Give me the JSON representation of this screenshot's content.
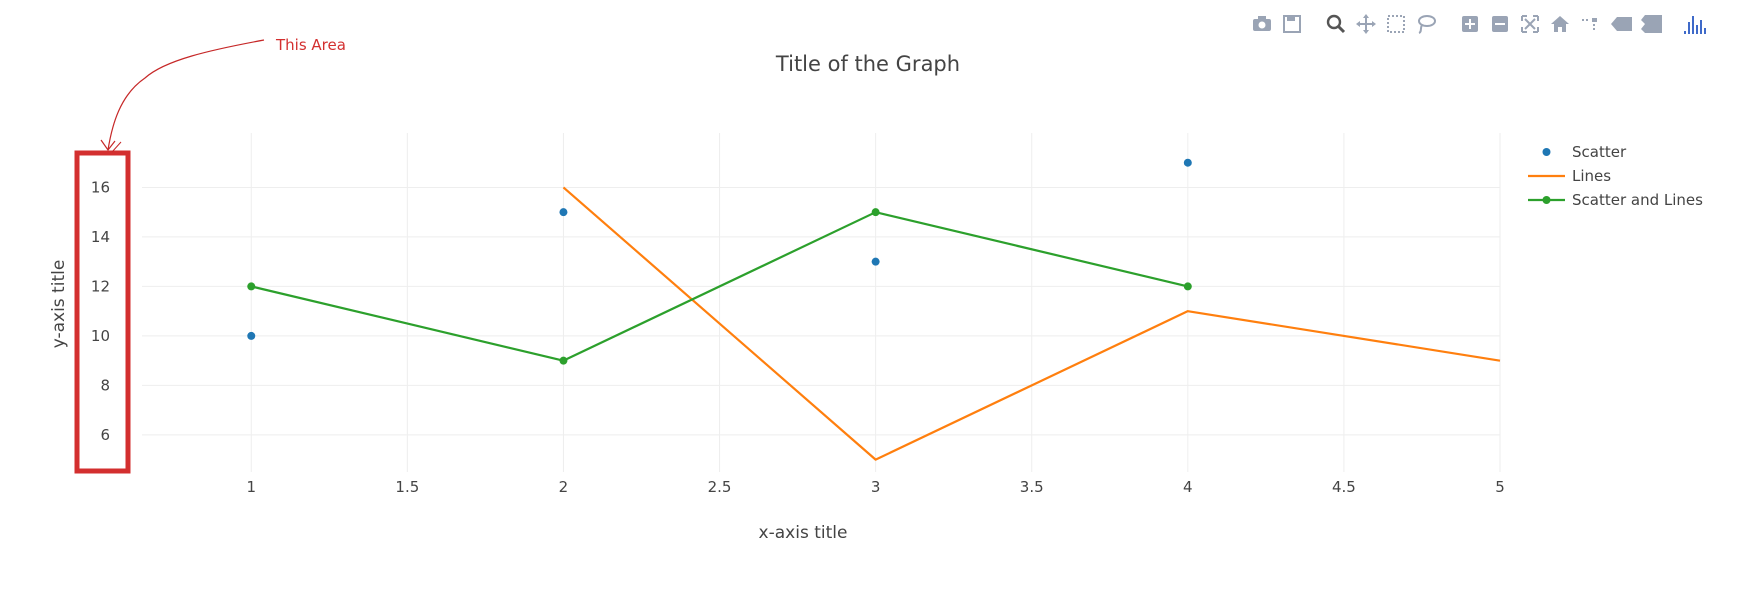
{
  "chart_data": {
    "type": "line",
    "title": "Title of the Graph",
    "xlabel": "x-axis title",
    "ylabel": "y-axis title",
    "xlim": [
      0.65,
      5
    ],
    "ylim": [
      4.5,
      18.2
    ],
    "xticks": [
      1,
      1.5,
      2,
      2.5,
      3,
      3.5,
      4,
      4.5,
      5
    ],
    "xtick_labels": [
      "1",
      "1.5",
      "2",
      "2.5",
      "3",
      "3.5",
      "4",
      "4.5",
      "5"
    ],
    "yticks": [
      6,
      8,
      10,
      12,
      14,
      16
    ],
    "ytick_labels": [
      "6",
      "8",
      "10",
      "12",
      "14",
      "16"
    ],
    "grid": true,
    "legend_position": "top-right",
    "series": [
      {
        "name": "Scatter",
        "mode": "markers",
        "color": "#1f77b4",
        "x": [
          1,
          2,
          3,
          4
        ],
        "y": [
          10,
          15,
          13,
          17
        ]
      },
      {
        "name": "Lines",
        "mode": "lines",
        "color": "#ff7f0e",
        "x": [
          2,
          3,
          4,
          5
        ],
        "y": [
          16,
          5,
          11,
          9
        ]
      },
      {
        "name": "Scatter and Lines",
        "mode": "lines+markers",
        "color": "#2ca02c",
        "x": [
          1,
          2,
          3,
          4
        ],
        "y": [
          12,
          9,
          15,
          12
        ]
      }
    ]
  },
  "annotation": {
    "text": "This Area",
    "color": "#d32f2f"
  },
  "modebar": {
    "color": "#9aa4b5",
    "logo_color": "#3f6ac9",
    "buttons": [
      "camera-icon",
      "save-icon",
      "zoom-icon",
      "pan-icon",
      "box-select-icon",
      "lasso-icon",
      "zoom-in-icon",
      "zoom-out-icon",
      "autoscale-icon",
      "home-icon",
      "spike-lines-icon",
      "hover-closest-icon",
      "hover-compare-icon",
      "plotly-logo-icon"
    ]
  }
}
